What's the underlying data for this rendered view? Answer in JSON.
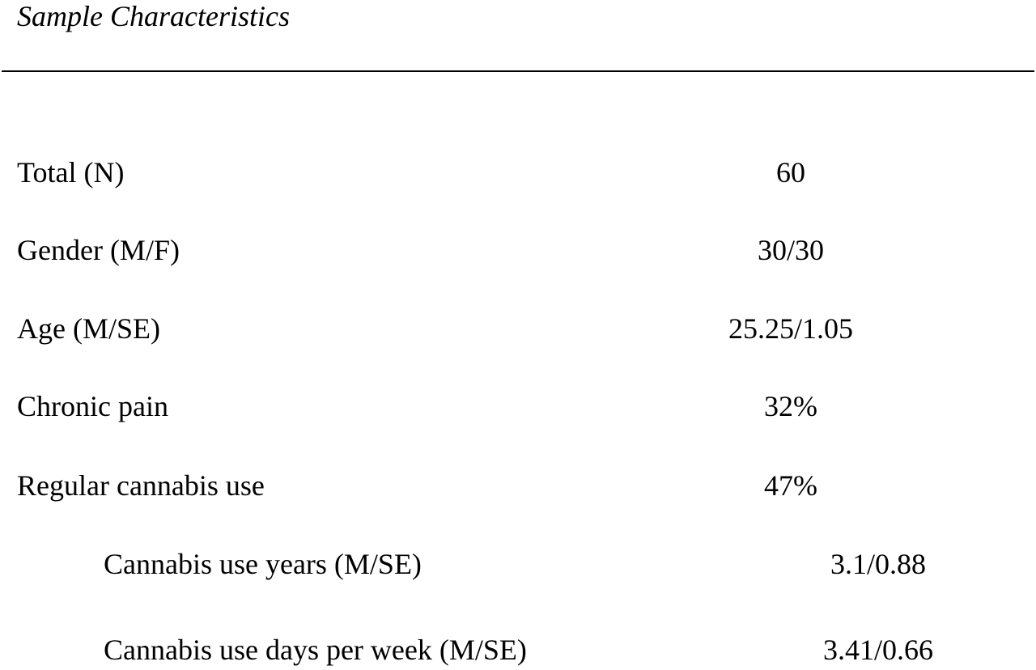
{
  "table": {
    "title": "Sample Characteristics",
    "rows": [
      {
        "label": "Total (N)",
        "value": "60",
        "indent": 0
      },
      {
        "label": "Gender (M/F)",
        "value": "30/30",
        "indent": 0
      },
      {
        "label": "Age (M/SE)",
        "value": "25.25/1.05",
        "indent": 0
      },
      {
        "label": "Chronic pain",
        "value": "32%",
        "indent": 0
      },
      {
        "label": "Regular cannabis use",
        "value": "47%",
        "indent": 0
      },
      {
        "label": "Cannabis use years (M/SE)",
        "value": "3.1/0.88",
        "indent": 1
      },
      {
        "label": "Cannabis use days per week (M/SE)",
        "value": "3.41/0.66",
        "indent": 1
      }
    ]
  }
}
